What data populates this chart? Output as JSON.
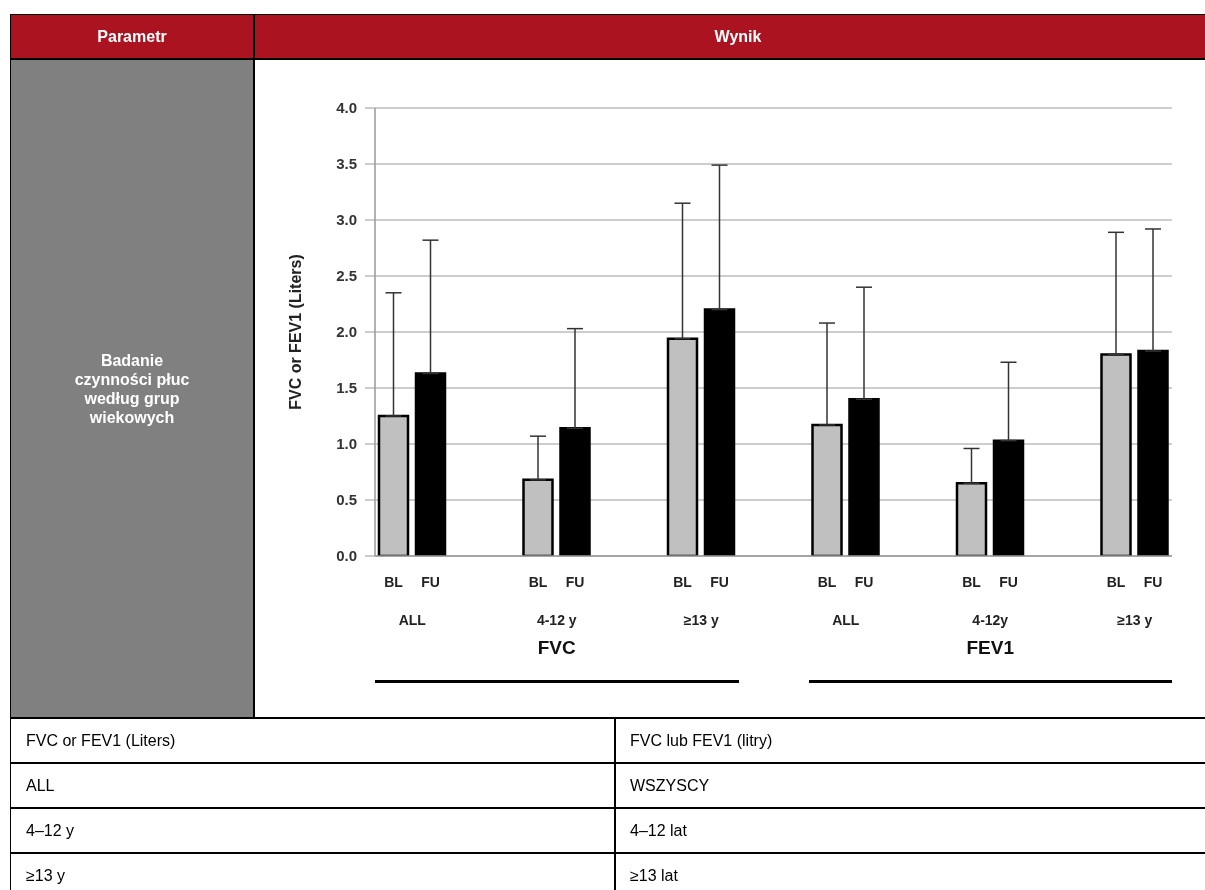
{
  "chart_data": {
    "type": "bar",
    "ylabel": "FVC or FEV1 (Liters)",
    "categories": [
      "ALL",
      "4-12 y",
      "≥13 y",
      "ALL",
      "4-12y",
      "≥13 y"
    ],
    "series": [
      {
        "name": "BL",
        "color": "#c0c0c0",
        "values": [
          1.25,
          0.68,
          1.94,
          1.17,
          0.65,
          1.8
        ],
        "errors": [
          [
            1.25,
            2.35
          ],
          [
            0.68,
            1.07
          ],
          [
            1.94,
            3.15
          ],
          [
            1.17,
            2.08
          ],
          [
            0.65,
            0.96
          ],
          [
            1.8,
            2.89
          ]
        ]
      },
      {
        "name": "FU",
        "color": "#000000",
        "values": [
          1.63,
          1.14,
          2.2,
          1.4,
          1.03,
          1.83
        ],
        "errors": [
          [
            1.63,
            2.82
          ],
          [
            1.14,
            2.03
          ],
          [
            2.2,
            3.49
          ],
          [
            1.4,
            2.4
          ],
          [
            1.03,
            1.73
          ],
          [
            1.83,
            2.92
          ]
        ]
      }
    ],
    "ylim": [
      0,
      4
    ],
    "yticks": [
      {
        "value": 0,
        "label": "0.0"
      },
      0.5,
      {
        "value": 1,
        "label": "1.0"
      },
      1.5,
      {
        "value": 2,
        "label": "2.0"
      },
      2.5,
      {
        "value": 3,
        "label": "3.0"
      },
      3.5,
      {
        "value": 4,
        "label": "4.0"
      }
    ],
    "grid": "y",
    "annotations": [
      "Parametr",
      "Wynik",
      "Badanie czynności płuc według grup wiekowych",
      "FVC",
      "FEV1",
      "FVC or FEV1 (Liters)",
      "FVC lub FEV1 (litry)",
      "ALL",
      "WSZYSCY",
      "4–12 y",
      "4–12 lat",
      "≥13 y",
      "≥13 lat"
    ]
  }
}
